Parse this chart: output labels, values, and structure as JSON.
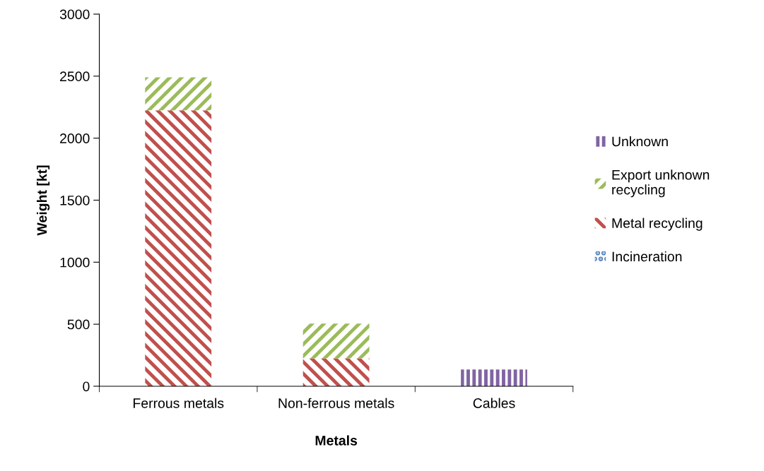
{
  "chart_data": {
    "type": "bar",
    "stacked": true,
    "xlabel": "Metals",
    "ylabel": "Weight [kt]",
    "categories": [
      "Ferrous metals",
      "Non-ferrous metals",
      "Cables"
    ],
    "series": [
      {
        "name": "Incineration",
        "color": "#4f81bd",
        "values": [
          0,
          0,
          0
        ]
      },
      {
        "name": "Metal recycling",
        "color": "#c0504d",
        "values": [
          2225,
          225,
          0
        ]
      },
      {
        "name": "Export unknown\nrecycling",
        "color": "#9bbb59",
        "values": [
          265,
          280,
          0
        ]
      },
      {
        "name": "Unknown",
        "color": "#8064a2",
        "values": [
          0,
          0,
          135
        ]
      }
    ],
    "ylim": [
      0,
      3000
    ],
    "yticks": [
      0,
      500,
      1000,
      1500,
      2000,
      2500,
      3000
    ],
    "grid": false,
    "legend": "right"
  }
}
